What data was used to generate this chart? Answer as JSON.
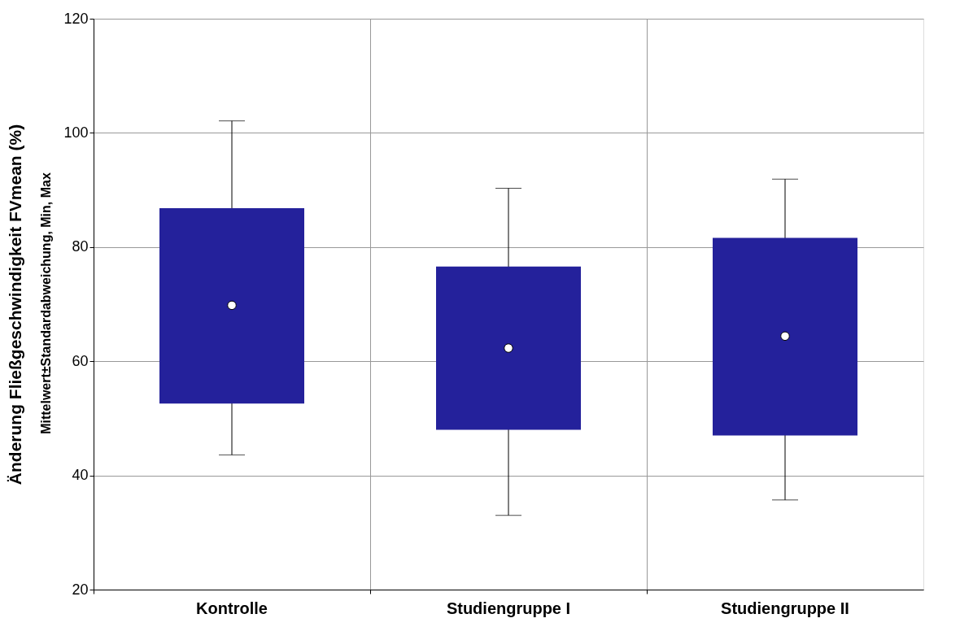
{
  "chart_data": {
    "type": "box",
    "xlabel": null,
    "ylabel": "Änderung Fließgeschwindigkeit FVmean (%)",
    "annotations": [
      "Mittelwert±Standardabweichung, Min, Max"
    ],
    "categories": [
      "Kontrolle",
      "Studiengruppe I",
      "Studiengruppe II"
    ],
    "boxes": [
      {
        "low": 43.6,
        "q1": 52.6,
        "median": 69.8,
        "q3": 86.8,
        "high": 102.1
      },
      {
        "low": 33,
        "q1": 48,
        "median": 62.3,
        "q3": 76.6,
        "high": 90.3
      },
      {
        "low": 35.7,
        "q1": 47,
        "median": 64.4,
        "q3": 81.6,
        "high": 91.9
      }
    ],
    "color": "#24219b",
    "ylim": [
      20,
      120
    ],
    "yticks": [
      20,
      40,
      60,
      80,
      100,
      120
    ],
    "grid": true
  }
}
